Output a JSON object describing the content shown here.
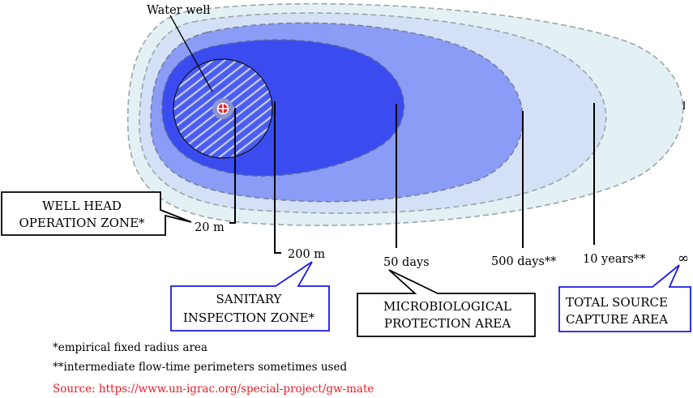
{
  "labels": {
    "water_well": "Water well",
    "r20": "20 m",
    "r200": "200 m",
    "d50": "50 days",
    "d500": "500 days**",
    "y10": "10 years**",
    "inf": "∞"
  },
  "callouts": {
    "wellhead": [
      "WELL HEAD",
      "OPERATION ZONE*"
    ],
    "sanitary": [
      "SANITARY",
      "INSPECTION ZONE*"
    ],
    "microbio": [
      "MICROBIOLOGICAL",
      "PROTECTION AREA"
    ],
    "capture": [
      "TOTAL SOURCE",
      "CAPTURE AREA"
    ]
  },
  "notes": {
    "empirical": "*empirical fixed radius area",
    "intermediate": "**intermediate flow-time perimeters sometimes used",
    "source": "Source: https://www.un-igrac.org/special-project/gw-mate"
  },
  "colors": {
    "capture_zone": "#e3f1f4",
    "ten_year_zone": "#d3e0f6",
    "five_hundred_day_zone": "#8b9cf6",
    "fifty_day_zone": "#3a4cf0",
    "sanitary_circle": "#4b5df0",
    "well_marker": "#e8242a",
    "callout_black": "#000000",
    "callout_blue": "#1a1ae6",
    "source_text": "#e4202a"
  }
}
